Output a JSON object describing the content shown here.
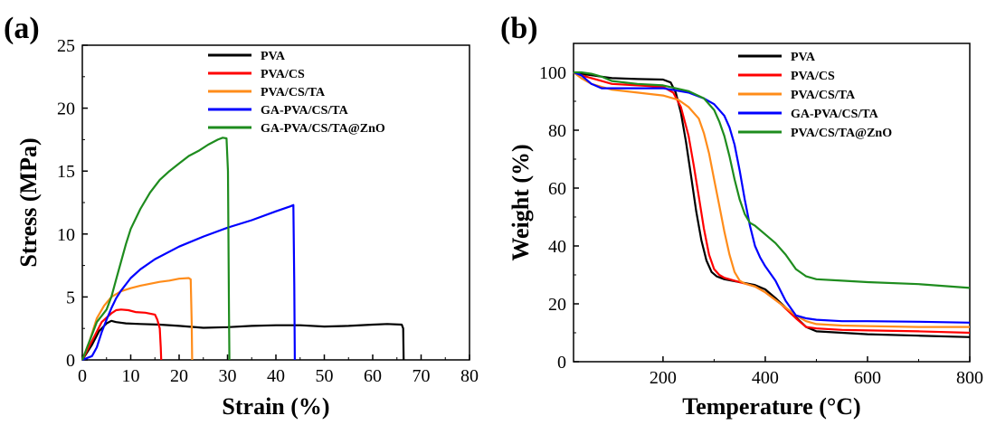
{
  "colors": {
    "PVA": "#000000",
    "PVA/CS": "#ff0000",
    "PVA/CS/TA": "#ff8c1a",
    "GA-PVA/CS/TA": "#0000ff",
    "PVA/CS/TA@ZnO": "#1e8c1e"
  },
  "chart_data": [
    {
      "panel_label": "(a)",
      "type": "line",
      "xlabel": "Strain (%)",
      "ylabel": "Stress (MPa)",
      "xlim": [
        0,
        80
      ],
      "ylim": [
        0,
        25
      ],
      "xticks": [
        "0",
        "10",
        "20",
        "30",
        "40",
        "50",
        "60",
        "70",
        "80"
      ],
      "yticks": [
        "0",
        "5",
        "10",
        "15",
        "20",
        "25"
      ],
      "legend_position": "top-right",
      "series": [
        {
          "name": "PVA",
          "color": "#000000",
          "x": [
            0,
            2,
            3.5,
            5,
            6,
            7,
            9,
            12,
            16,
            20,
            25,
            30,
            35,
            40,
            45,
            50,
            55,
            60,
            63,
            66,
            66.3,
            66.4
          ],
          "y": [
            0,
            1.2,
            2.3,
            2.9,
            3.1,
            3.0,
            2.9,
            2.85,
            2.8,
            2.7,
            2.55,
            2.6,
            2.7,
            2.75,
            2.75,
            2.65,
            2.7,
            2.8,
            2.85,
            2.8,
            2.5,
            0
          ]
        },
        {
          "name": "PVA/CS",
          "color": "#ff0000",
          "x": [
            0,
            2,
            4,
            6,
            7,
            8,
            9.5,
            11,
            13,
            15,
            15.5,
            16,
            16.2,
            16.3
          ],
          "y": [
            0,
            1.5,
            3.0,
            3.7,
            3.95,
            4.0,
            3.95,
            3.8,
            3.75,
            3.6,
            3.2,
            2.5,
            1.0,
            0
          ]
        },
        {
          "name": "PVA/CS/TA",
          "color": "#ff8c1a",
          "x": [
            0,
            1.5,
            3,
            4.5,
            6,
            8,
            10,
            12,
            14,
            16,
            18,
            20,
            22,
            22.4,
            22.6,
            22.7
          ],
          "y": [
            0,
            1.5,
            3.3,
            4.3,
            5.0,
            5.45,
            5.7,
            5.9,
            6.05,
            6.2,
            6.3,
            6.45,
            6.5,
            6.4,
            3.0,
            0
          ]
        },
        {
          "name": "GA-PVA/CS/TA",
          "color": "#0000ff",
          "x": [
            0,
            2,
            3,
            4,
            5,
            6,
            7,
            8,
            10,
            12,
            15,
            20,
            25,
            30,
            35,
            40,
            43,
            43.6,
            43.8,
            43.9
          ],
          "y": [
            0,
            0.3,
            1.0,
            2.2,
            3.2,
            4.1,
            4.9,
            5.5,
            6.5,
            7.2,
            8.0,
            9.0,
            9.8,
            10.5,
            11.1,
            11.8,
            12.2,
            12.3,
            6.0,
            0
          ]
        },
        {
          "name": "GA-PVA/CS/TA@ZnO",
          "color": "#1e8c1e",
          "x": [
            0,
            1,
            2,
            3,
            4,
            5,
            6,
            7,
            8,
            9,
            10,
            12,
            14,
            16,
            18,
            20,
            22,
            24,
            26,
            28,
            29,
            29.8,
            30.1,
            30.3,
            30.4
          ],
          "y": [
            0,
            1.0,
            2.0,
            3.0,
            3.5,
            4.0,
            5.0,
            6.4,
            7.8,
            9.2,
            10.4,
            12.0,
            13.3,
            14.3,
            15.0,
            15.6,
            16.2,
            16.6,
            17.1,
            17.5,
            17.65,
            17.6,
            15.0,
            4.0,
            0
          ]
        }
      ]
    },
    {
      "panel_label": "(b)",
      "type": "line",
      "xlabel": "Temperature (°C)",
      "ylabel": "Weight (%)",
      "xlim": [
        25,
        800
      ],
      "ylim": [
        0,
        110
      ],
      "xticks": [
        "200",
        "400",
        "600",
        "800"
      ],
      "yticks": [
        "0",
        "20",
        "40",
        "60",
        "80",
        "100"
      ],
      "legend_position": "top-right",
      "series": [
        {
          "name": "PVA",
          "color": "#000000",
          "x": [
            25,
            40,
            60,
            80,
            100,
            150,
            200,
            215,
            225,
            235,
            245,
            255,
            265,
            275,
            285,
            295,
            305,
            320,
            350,
            380,
            400,
            420,
            450,
            480,
            500,
            550,
            600,
            700,
            800
          ],
          "y": [
            100,
            99.5,
            99,
            98.5,
            98,
            97.7,
            97.5,
            96.5,
            93,
            86,
            76,
            64,
            52,
            42,
            35,
            31,
            29.5,
            28.5,
            27.5,
            26.5,
            25,
            22,
            17,
            12,
            10.5,
            10,
            9.5,
            9,
            8.5
          ]
        },
        {
          "name": "PVA/CS",
          "color": "#ff0000",
          "x": [
            25,
            40,
            60,
            80,
            100,
            150,
            200,
            220,
            235,
            250,
            260,
            270,
            280,
            290,
            300,
            310,
            320,
            340,
            360,
            380,
            400,
            430,
            460,
            480,
            500,
            550,
            600,
            700,
            800
          ],
          "y": [
            100,
            99,
            98,
            97,
            96,
            95.5,
            95,
            93,
            88,
            78,
            68,
            57,
            46,
            37,
            32,
            30,
            29,
            28,
            27,
            26,
            24,
            20,
            15,
            12,
            11.5,
            11,
            10.8,
            10.5,
            10
          ]
        },
        {
          "name": "PVA/CS/TA",
          "color": "#ff8c1a",
          "x": [
            25,
            40,
            60,
            80,
            100,
            150,
            200,
            230,
            250,
            270,
            280,
            290,
            300,
            310,
            320,
            330,
            340,
            350,
            360,
            380,
            400,
            430,
            460,
            480,
            500,
            550,
            600,
            700,
            800
          ],
          "y": [
            100,
            98,
            96,
            95,
            94,
            93,
            92,
            90.5,
            88,
            84,
            79,
            72,
            63,
            54,
            45,
            37,
            31,
            28,
            27,
            26,
            24,
            20,
            16,
            14,
            13,
            12.5,
            12.3,
            12,
            12
          ]
        },
        {
          "name": "GA-PVA/CS/TA",
          "color": "#0000ff",
          "x": [
            25,
            40,
            60,
            80,
            100,
            150,
            200,
            250,
            280,
            300,
            320,
            330,
            340,
            350,
            360,
            370,
            380,
            390,
            400,
            420,
            440,
            460,
            480,
            500,
            550,
            600,
            700,
            800
          ],
          "y": [
            100,
            99,
            96,
            94.5,
            94.5,
            94.5,
            94.5,
            93,
            91,
            89,
            85,
            81,
            75,
            66,
            56,
            47,
            40,
            36,
            33,
            28,
            21,
            16,
            15,
            14.5,
            14,
            14,
            13.8,
            13.5
          ]
        },
        {
          "name": "PVA/CS/TA@ZnO",
          "color": "#1e8c1e",
          "x": [
            25,
            40,
            60,
            80,
            100,
            150,
            200,
            250,
            280,
            300,
            310,
            320,
            330,
            340,
            350,
            360,
            370,
            380,
            400,
            420,
            440,
            460,
            480,
            500,
            550,
            600,
            700,
            800
          ],
          "y": [
            100,
            100,
            99.5,
            98.5,
            97,
            96,
            95.5,
            93.5,
            91,
            87,
            83,
            78,
            71,
            63,
            56,
            51,
            48,
            47,
            44,
            41,
            37,
            32,
            29.5,
            28.5,
            28,
            27.5,
            26.8,
            25.5
          ]
        }
      ]
    }
  ]
}
